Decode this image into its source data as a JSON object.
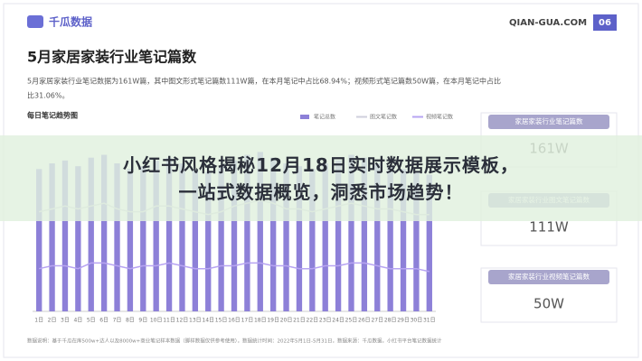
{
  "header": {
    "logo": "千瓜数据",
    "site": "QIAN-GUA.COM",
    "page": "06"
  },
  "title": "5月家居家装行业笔记篇数",
  "description": [
    "5月家居家装行业笔记数据为161W篇，其中图文形式笔记篇数111W篇，在本月笔记中占比68.94%；视频形式笔记篇数50W篇，在本月笔记中占比",
    "比31.06%。"
  ],
  "cards": [
    {
      "label": "家居家装行业笔记篇数",
      "value": "161W"
    },
    {
      "label": "家居家装行业图文笔记篇数",
      "value": "111W"
    },
    {
      "label": "家居家装行业视频笔记篇数",
      "value": "50W"
    }
  ],
  "footer": "数据说明：基于千瓜在库500w+达人以及8000w+商业笔记样本数据（脚样数据仅供参考使用），数据统计时间：2022年5月1日-5月31日，数据来源：千瓜数据，小红书平台笔记数据统计",
  "banner": [
    "小红书风格揭秘12月18日实时数据展示模板，",
    "一站式数据概览，洞悉市场趋势！"
  ],
  "chart_data": {
    "type": "bar",
    "title": "每日笔记趋势图",
    "categories": [
      "1日",
      "2日",
      "3日",
      "4日",
      "5日",
      "6日",
      "7日",
      "8日",
      "9日",
      "10日",
      "11日",
      "12日",
      "13日",
      "14日",
      "15日",
      "16日",
      "17日",
      "18日",
      "19日",
      "20日",
      "21日",
      "22日",
      "23日",
      "24日",
      "25日",
      "26日",
      "27日",
      "28日",
      "29日",
      "30日",
      "31日"
    ],
    "ylim": [
      0,
      65000
    ],
    "series": [
      {
        "name": "笔记总数",
        "type": "bar",
        "color": "#8d80d8",
        "values": [
          50000,
          52000,
          53000,
          51000,
          54000,
          55000,
          52000,
          50000,
          51000,
          53000,
          54000,
          52000,
          50000,
          49000,
          51000,
          53000,
          55000,
          56000,
          54000,
          52000,
          51000,
          50000,
          52000,
          53000,
          55000,
          54000,
          52000,
          51000,
          50000,
          49000,
          48000
        ]
      },
      {
        "name": "图文笔记数",
        "type": "line",
        "color": "#cfcfdc",
        "values": [
          35000,
          36000,
          37000,
          36000,
          37000,
          38000,
          36000,
          35000,
          35000,
          37000,
          37000,
          36000,
          35000,
          34000,
          35000,
          37000,
          38000,
          39000,
          38000,
          36000,
          36000,
          35000,
          36000,
          37000,
          38000,
          37000,
          36000,
          36000,
          35000,
          34000,
          34000
        ]
      },
      {
        "name": "视频笔记数",
        "type": "line",
        "color": "#b7a4f2",
        "values": [
          15000,
          16000,
          16000,
          15000,
          17000,
          17000,
          16000,
          15000,
          16000,
          16000,
          17000,
          16000,
          15000,
          15000,
          16000,
          16000,
          17000,
          17000,
          16000,
          16000,
          15000,
          15000,
          16000,
          16000,
          17000,
          17000,
          16000,
          15000,
          15000,
          15000,
          14000
        ]
      }
    ]
  }
}
